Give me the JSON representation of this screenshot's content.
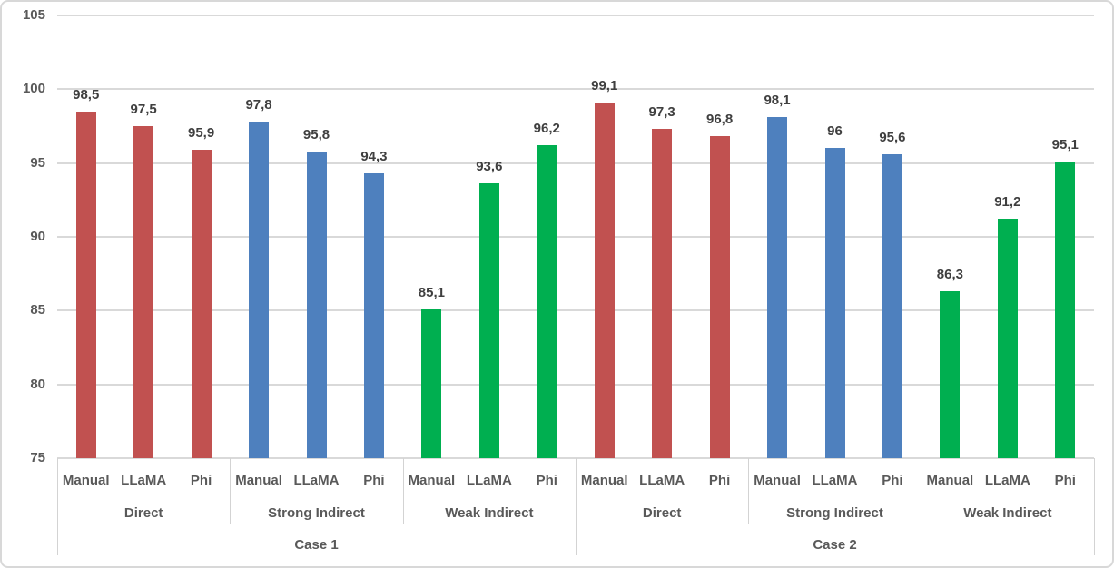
{
  "chart_data": {
    "type": "bar",
    "title": "",
    "xlabel": "",
    "ylabel": "",
    "ylim": [
      75,
      105
    ],
    "yticks": [
      75,
      80,
      85,
      90,
      95,
      100,
      105
    ],
    "grid": true,
    "legend": "none",
    "decimal_separator": ",",
    "axis_hierarchy_levels": [
      "model",
      "prompt-type",
      "case"
    ],
    "colors": {
      "direct": "#c15150",
      "strong_indirect": "#4e80be",
      "weak_indirect": "#00af50",
      "gridline": "#d9d9d9",
      "axis_text": "#595959",
      "data_label_text": "#3f3f3f"
    },
    "cases": [
      {
        "label": "Case 1",
        "groups": [
          {
            "label": "Direct",
            "color_key": "direct",
            "bars": [
              {
                "label": "Manual",
                "value": 98.5,
                "display": "98,5"
              },
              {
                "label": "LLaMA",
                "value": 97.5,
                "display": "97,5"
              },
              {
                "label": "Phi",
                "value": 95.9,
                "display": "95,9"
              }
            ]
          },
          {
            "label": "Strong Indirect",
            "color_key": "strong_indirect",
            "bars": [
              {
                "label": "Manual",
                "value": 97.8,
                "display": "97,8"
              },
              {
                "label": "LLaMA",
                "value": 95.8,
                "display": "95,8"
              },
              {
                "label": "Phi",
                "value": 94.3,
                "display": "94,3"
              }
            ]
          },
          {
            "label": "Weak Indirect",
            "color_key": "weak_indirect",
            "bars": [
              {
                "label": "Manual",
                "value": 85.1,
                "display": "85,1"
              },
              {
                "label": "LLaMA",
                "value": 93.6,
                "display": "93,6"
              },
              {
                "label": "Phi",
                "value": 96.2,
                "display": "96,2"
              }
            ]
          }
        ]
      },
      {
        "label": "Case 2",
        "groups": [
          {
            "label": "Direct",
            "color_key": "direct",
            "bars": [
              {
                "label": "Manual",
                "value": 99.1,
                "display": "99,1"
              },
              {
                "label": "LLaMA",
                "value": 97.3,
                "display": "97,3"
              },
              {
                "label": "Phi",
                "value": 96.8,
                "display": "96,8"
              }
            ]
          },
          {
            "label": "Strong Indirect",
            "color_key": "strong_indirect",
            "bars": [
              {
                "label": "Manual",
                "value": 98.1,
                "display": "98,1"
              },
              {
                "label": "LLaMA",
                "value": 96,
                "display": "96"
              },
              {
                "label": "Phi",
                "value": 95.6,
                "display": "95,6"
              }
            ]
          },
          {
            "label": "Weak Indirect",
            "color_key": "weak_indirect",
            "bars": [
              {
                "label": "Manual",
                "value": 86.3,
                "display": "86,3"
              },
              {
                "label": "LLaMA",
                "value": 91.2,
                "display": "91,2"
              },
              {
                "label": "Phi",
                "value": 95.1,
                "display": "95,1"
              }
            ]
          }
        ]
      }
    ]
  }
}
